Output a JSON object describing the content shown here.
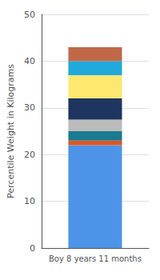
{
  "chart_data": {
    "type": "bar",
    "stacked": true,
    "grid": true,
    "categories": [
      "Boy 8 years 11 months"
    ],
    "ylabel": "Percentile Weight in Kilograms",
    "ylim": [
      0,
      50
    ],
    "yticks": [
      0,
      10,
      20,
      30,
      40,
      50
    ],
    "series": [
      {
        "color": "#4D94E8",
        "values": [
          22
        ]
      },
      {
        "color": "#E05520",
        "values": [
          1
        ]
      },
      {
        "color": "#1A7A90",
        "values": [
          2
        ]
      },
      {
        "color": "#BBBBBB",
        "values": [
          2.5
        ]
      },
      {
        "color": "#1E3560",
        "values": [
          4.5
        ]
      },
      {
        "color": "#FFE870",
        "values": [
          5
        ]
      },
      {
        "color": "#20AADC",
        "values": [
          3
        ]
      },
      {
        "color": "#C06848",
        "values": [
          3
        ]
      }
    ]
  }
}
